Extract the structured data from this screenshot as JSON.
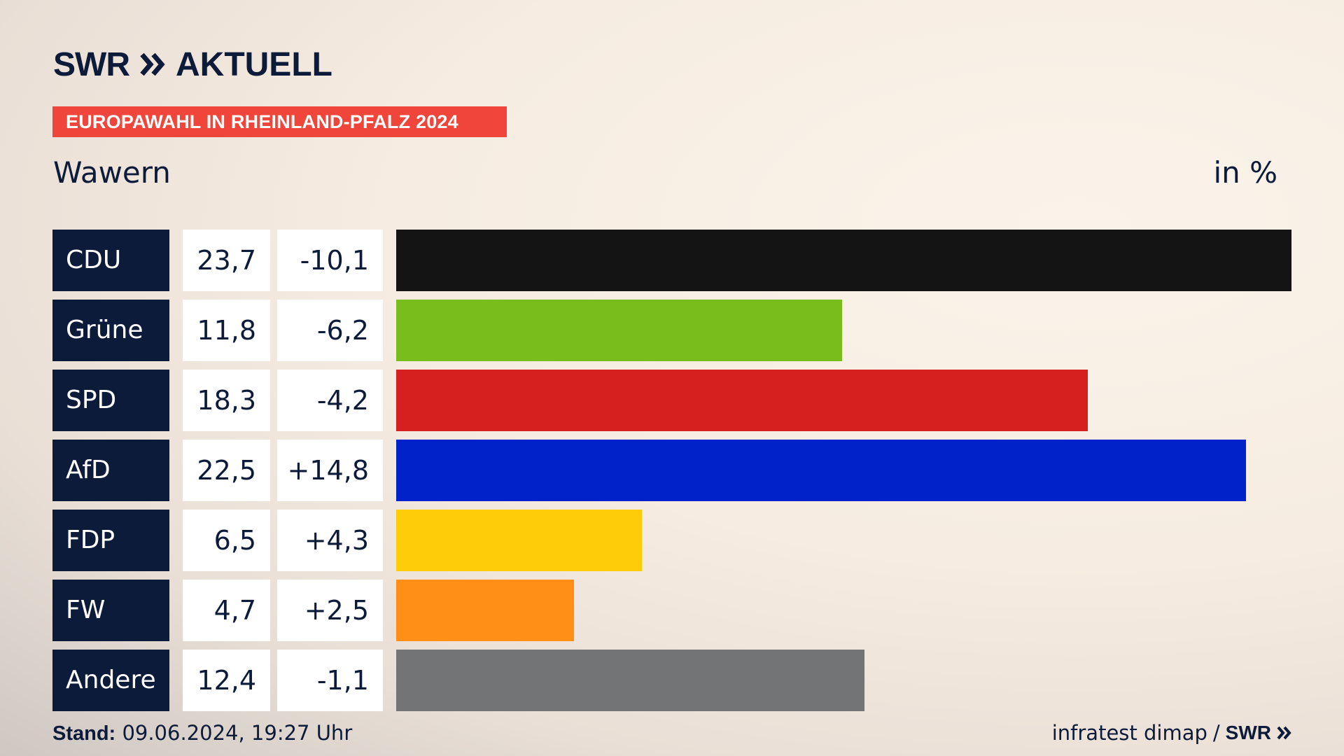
{
  "brand": {
    "logo_text": "SWR",
    "product": "AKTUELL",
    "banner": "EUROPAWAHL IN RHEINLAND-PFALZ 2024"
  },
  "location": "Wawern",
  "unit_label": "in %",
  "footer": {
    "stand_label": "Stand:",
    "stand_value": "09.06.2024, 19:27 Uhr",
    "source": "infratest dimap",
    "separator": "/",
    "source_logo": "SWR"
  },
  "chart_data": {
    "type": "bar",
    "orientation": "horizontal",
    "title": "Wawern",
    "unit": "in %",
    "xlim": [
      0,
      23.7
    ],
    "categories": [
      "CDU",
      "Grüne",
      "SPD",
      "AfD",
      "FDP",
      "FW",
      "Andere"
    ],
    "values": [
      23.7,
      11.8,
      18.3,
      22.5,
      6.5,
      4.7,
      12.4
    ],
    "value_labels": [
      "23,7",
      "11,8",
      "18,3",
      "22,5",
      "6,5",
      "4,7",
      "12,4"
    ],
    "diff_labels": [
      "-10,1",
      "-6,2",
      "-4,2",
      "+14,8",
      "+4,3",
      "+2,5",
      "-1,1"
    ],
    "colors": [
      "#141414",
      "#78bd1b",
      "#d61f1f",
      "#0022c8",
      "#ffcc09",
      "#ff8f16",
      "#737476"
    ]
  }
}
